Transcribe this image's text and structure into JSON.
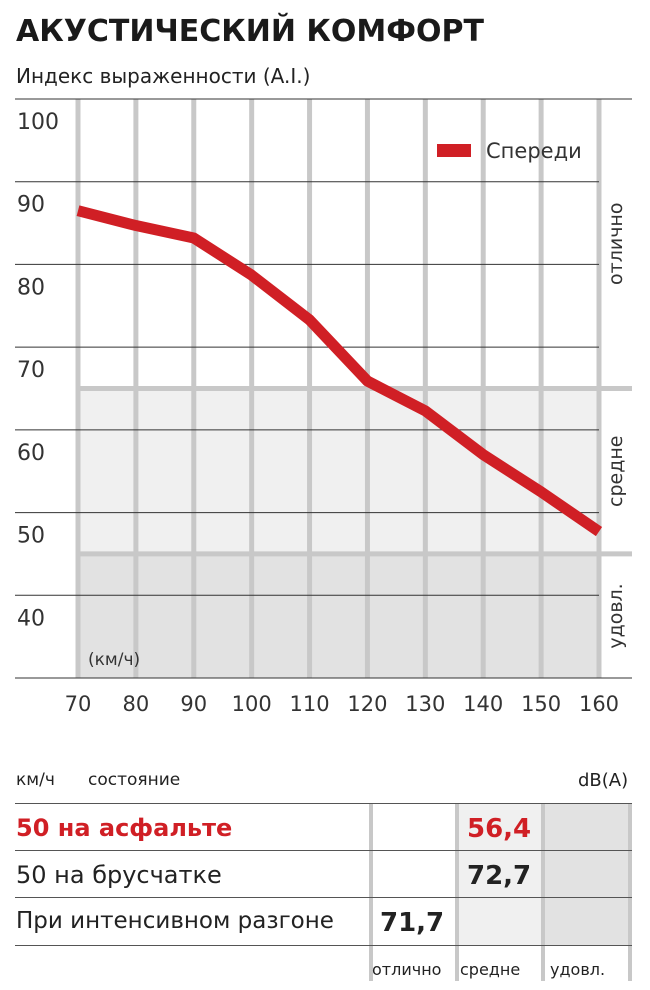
{
  "title": "АКУСТИЧЕСКИЙ КОМФОРТ",
  "subtitle": "Индекс выраженности (A.I.)",
  "chart_data": {
    "type": "line",
    "title": "АКУСТИЧЕСКИЙ КОМФОРТ",
    "ylabel": "Индекс выраженности (A.I.)",
    "xlabel": "(км/ч)",
    "x": [
      70,
      80,
      90,
      100,
      110,
      120,
      130,
      140,
      150,
      160
    ],
    "xticks": [
      "70",
      "80",
      "90",
      "100",
      "110",
      "120",
      "130",
      "140",
      "150",
      "160"
    ],
    "yticks": [
      "100",
      "90",
      "80",
      "70",
      "60",
      "50",
      "40"
    ],
    "xlim": [
      70,
      160
    ],
    "ylim": [
      30,
      100
    ],
    "grid": true,
    "legend": "top-right",
    "series": [
      {
        "name": "Спереди",
        "color": "#d01f25",
        "values": [
          86.5,
          84.7,
          83.2,
          78.7,
          73.3,
          65.9,
          62.3,
          57.0,
          52.5,
          47.7
        ]
      }
    ],
    "bands": [
      {
        "label": "отлично",
        "from": 65,
        "to": 100,
        "color": "#ffffff"
      },
      {
        "label": "средне",
        "from": 45,
        "to": 65,
        "color": "#f0f0f0"
      },
      {
        "label": "удовл.",
        "from": 30,
        "to": 45,
        "color": "#e2e2e2"
      }
    ]
  },
  "table": {
    "headers": {
      "speed": "км/ч",
      "condition": "состояние",
      "unit": "dB(A)"
    },
    "columns": [
      "отлично",
      "средне",
      "удовл."
    ],
    "rows": [
      {
        "label": "50 на асфальте",
        "value": "56,4",
        "column": 1,
        "highlight": true
      },
      {
        "label": "50 на брусчатке",
        "value": "72,7",
        "column": 1,
        "highlight": false
      },
      {
        "label": "При интенсивном разгоне",
        "value": "71,7",
        "column": 0,
        "highlight": false
      }
    ]
  }
}
